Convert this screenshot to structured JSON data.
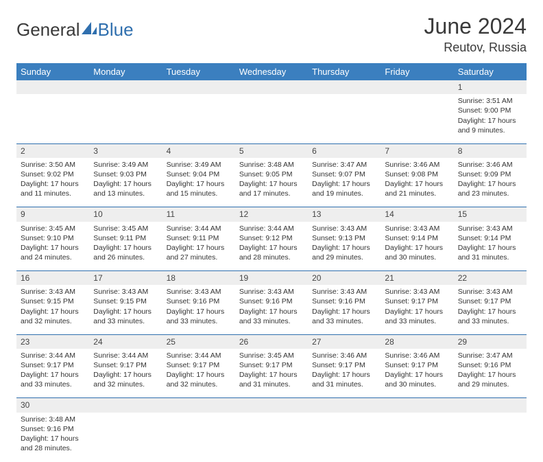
{
  "logo": {
    "text_a": "General",
    "text_b": "Blue"
  },
  "title": "June 2024",
  "location": "Reutov, Russia",
  "colors": {
    "header_bg": "#3b7fbf",
    "header_text": "#ffffff",
    "daynum_bg": "#eeeeee",
    "border": "#2f6fae",
    "logo_blue": "#2f6fae",
    "body_text": "#333333"
  },
  "weekdays": [
    "Sunday",
    "Monday",
    "Tuesday",
    "Wednesday",
    "Thursday",
    "Friday",
    "Saturday"
  ],
  "weeks": [
    {
      "nums": [
        "",
        "",
        "",
        "",
        "",
        "",
        "1"
      ],
      "cells": [
        null,
        null,
        null,
        null,
        null,
        null,
        {
          "sunrise": "Sunrise: 3:51 AM",
          "sunset": "Sunset: 9:00 PM",
          "day1": "Daylight: 17 hours",
          "day2": "and 9 minutes."
        }
      ]
    },
    {
      "nums": [
        "2",
        "3",
        "4",
        "5",
        "6",
        "7",
        "8"
      ],
      "cells": [
        {
          "sunrise": "Sunrise: 3:50 AM",
          "sunset": "Sunset: 9:02 PM",
          "day1": "Daylight: 17 hours",
          "day2": "and 11 minutes."
        },
        {
          "sunrise": "Sunrise: 3:49 AM",
          "sunset": "Sunset: 9:03 PM",
          "day1": "Daylight: 17 hours",
          "day2": "and 13 minutes."
        },
        {
          "sunrise": "Sunrise: 3:49 AM",
          "sunset": "Sunset: 9:04 PM",
          "day1": "Daylight: 17 hours",
          "day2": "and 15 minutes."
        },
        {
          "sunrise": "Sunrise: 3:48 AM",
          "sunset": "Sunset: 9:05 PM",
          "day1": "Daylight: 17 hours",
          "day2": "and 17 minutes."
        },
        {
          "sunrise": "Sunrise: 3:47 AM",
          "sunset": "Sunset: 9:07 PM",
          "day1": "Daylight: 17 hours",
          "day2": "and 19 minutes."
        },
        {
          "sunrise": "Sunrise: 3:46 AM",
          "sunset": "Sunset: 9:08 PM",
          "day1": "Daylight: 17 hours",
          "day2": "and 21 minutes."
        },
        {
          "sunrise": "Sunrise: 3:46 AM",
          "sunset": "Sunset: 9:09 PM",
          "day1": "Daylight: 17 hours",
          "day2": "and 23 minutes."
        }
      ]
    },
    {
      "nums": [
        "9",
        "10",
        "11",
        "12",
        "13",
        "14",
        "15"
      ],
      "cells": [
        {
          "sunrise": "Sunrise: 3:45 AM",
          "sunset": "Sunset: 9:10 PM",
          "day1": "Daylight: 17 hours",
          "day2": "and 24 minutes."
        },
        {
          "sunrise": "Sunrise: 3:45 AM",
          "sunset": "Sunset: 9:11 PM",
          "day1": "Daylight: 17 hours",
          "day2": "and 26 minutes."
        },
        {
          "sunrise": "Sunrise: 3:44 AM",
          "sunset": "Sunset: 9:11 PM",
          "day1": "Daylight: 17 hours",
          "day2": "and 27 minutes."
        },
        {
          "sunrise": "Sunrise: 3:44 AM",
          "sunset": "Sunset: 9:12 PM",
          "day1": "Daylight: 17 hours",
          "day2": "and 28 minutes."
        },
        {
          "sunrise": "Sunrise: 3:43 AM",
          "sunset": "Sunset: 9:13 PM",
          "day1": "Daylight: 17 hours",
          "day2": "and 29 minutes."
        },
        {
          "sunrise": "Sunrise: 3:43 AM",
          "sunset": "Sunset: 9:14 PM",
          "day1": "Daylight: 17 hours",
          "day2": "and 30 minutes."
        },
        {
          "sunrise": "Sunrise: 3:43 AM",
          "sunset": "Sunset: 9:14 PM",
          "day1": "Daylight: 17 hours",
          "day2": "and 31 minutes."
        }
      ]
    },
    {
      "nums": [
        "16",
        "17",
        "18",
        "19",
        "20",
        "21",
        "22"
      ],
      "cells": [
        {
          "sunrise": "Sunrise: 3:43 AM",
          "sunset": "Sunset: 9:15 PM",
          "day1": "Daylight: 17 hours",
          "day2": "and 32 minutes."
        },
        {
          "sunrise": "Sunrise: 3:43 AM",
          "sunset": "Sunset: 9:15 PM",
          "day1": "Daylight: 17 hours",
          "day2": "and 33 minutes."
        },
        {
          "sunrise": "Sunrise: 3:43 AM",
          "sunset": "Sunset: 9:16 PM",
          "day1": "Daylight: 17 hours",
          "day2": "and 33 minutes."
        },
        {
          "sunrise": "Sunrise: 3:43 AM",
          "sunset": "Sunset: 9:16 PM",
          "day1": "Daylight: 17 hours",
          "day2": "and 33 minutes."
        },
        {
          "sunrise": "Sunrise: 3:43 AM",
          "sunset": "Sunset: 9:16 PM",
          "day1": "Daylight: 17 hours",
          "day2": "and 33 minutes."
        },
        {
          "sunrise": "Sunrise: 3:43 AM",
          "sunset": "Sunset: 9:17 PM",
          "day1": "Daylight: 17 hours",
          "day2": "and 33 minutes."
        },
        {
          "sunrise": "Sunrise: 3:43 AM",
          "sunset": "Sunset: 9:17 PM",
          "day1": "Daylight: 17 hours",
          "day2": "and 33 minutes."
        }
      ]
    },
    {
      "nums": [
        "23",
        "24",
        "25",
        "26",
        "27",
        "28",
        "29"
      ],
      "cells": [
        {
          "sunrise": "Sunrise: 3:44 AM",
          "sunset": "Sunset: 9:17 PM",
          "day1": "Daylight: 17 hours",
          "day2": "and 33 minutes."
        },
        {
          "sunrise": "Sunrise: 3:44 AM",
          "sunset": "Sunset: 9:17 PM",
          "day1": "Daylight: 17 hours",
          "day2": "and 32 minutes."
        },
        {
          "sunrise": "Sunrise: 3:44 AM",
          "sunset": "Sunset: 9:17 PM",
          "day1": "Daylight: 17 hours",
          "day2": "and 32 minutes."
        },
        {
          "sunrise": "Sunrise: 3:45 AM",
          "sunset": "Sunset: 9:17 PM",
          "day1": "Daylight: 17 hours",
          "day2": "and 31 minutes."
        },
        {
          "sunrise": "Sunrise: 3:46 AM",
          "sunset": "Sunset: 9:17 PM",
          "day1": "Daylight: 17 hours",
          "day2": "and 31 minutes."
        },
        {
          "sunrise": "Sunrise: 3:46 AM",
          "sunset": "Sunset: 9:17 PM",
          "day1": "Daylight: 17 hours",
          "day2": "and 30 minutes."
        },
        {
          "sunrise": "Sunrise: 3:47 AM",
          "sunset": "Sunset: 9:16 PM",
          "day1": "Daylight: 17 hours",
          "day2": "and 29 minutes."
        }
      ]
    },
    {
      "nums": [
        "30",
        "",
        "",
        "",
        "",
        "",
        ""
      ],
      "cells": [
        {
          "sunrise": "Sunrise: 3:48 AM",
          "sunset": "Sunset: 9:16 PM",
          "day1": "Daylight: 17 hours",
          "day2": "and 28 minutes."
        },
        null,
        null,
        null,
        null,
        null,
        null
      ]
    }
  ]
}
